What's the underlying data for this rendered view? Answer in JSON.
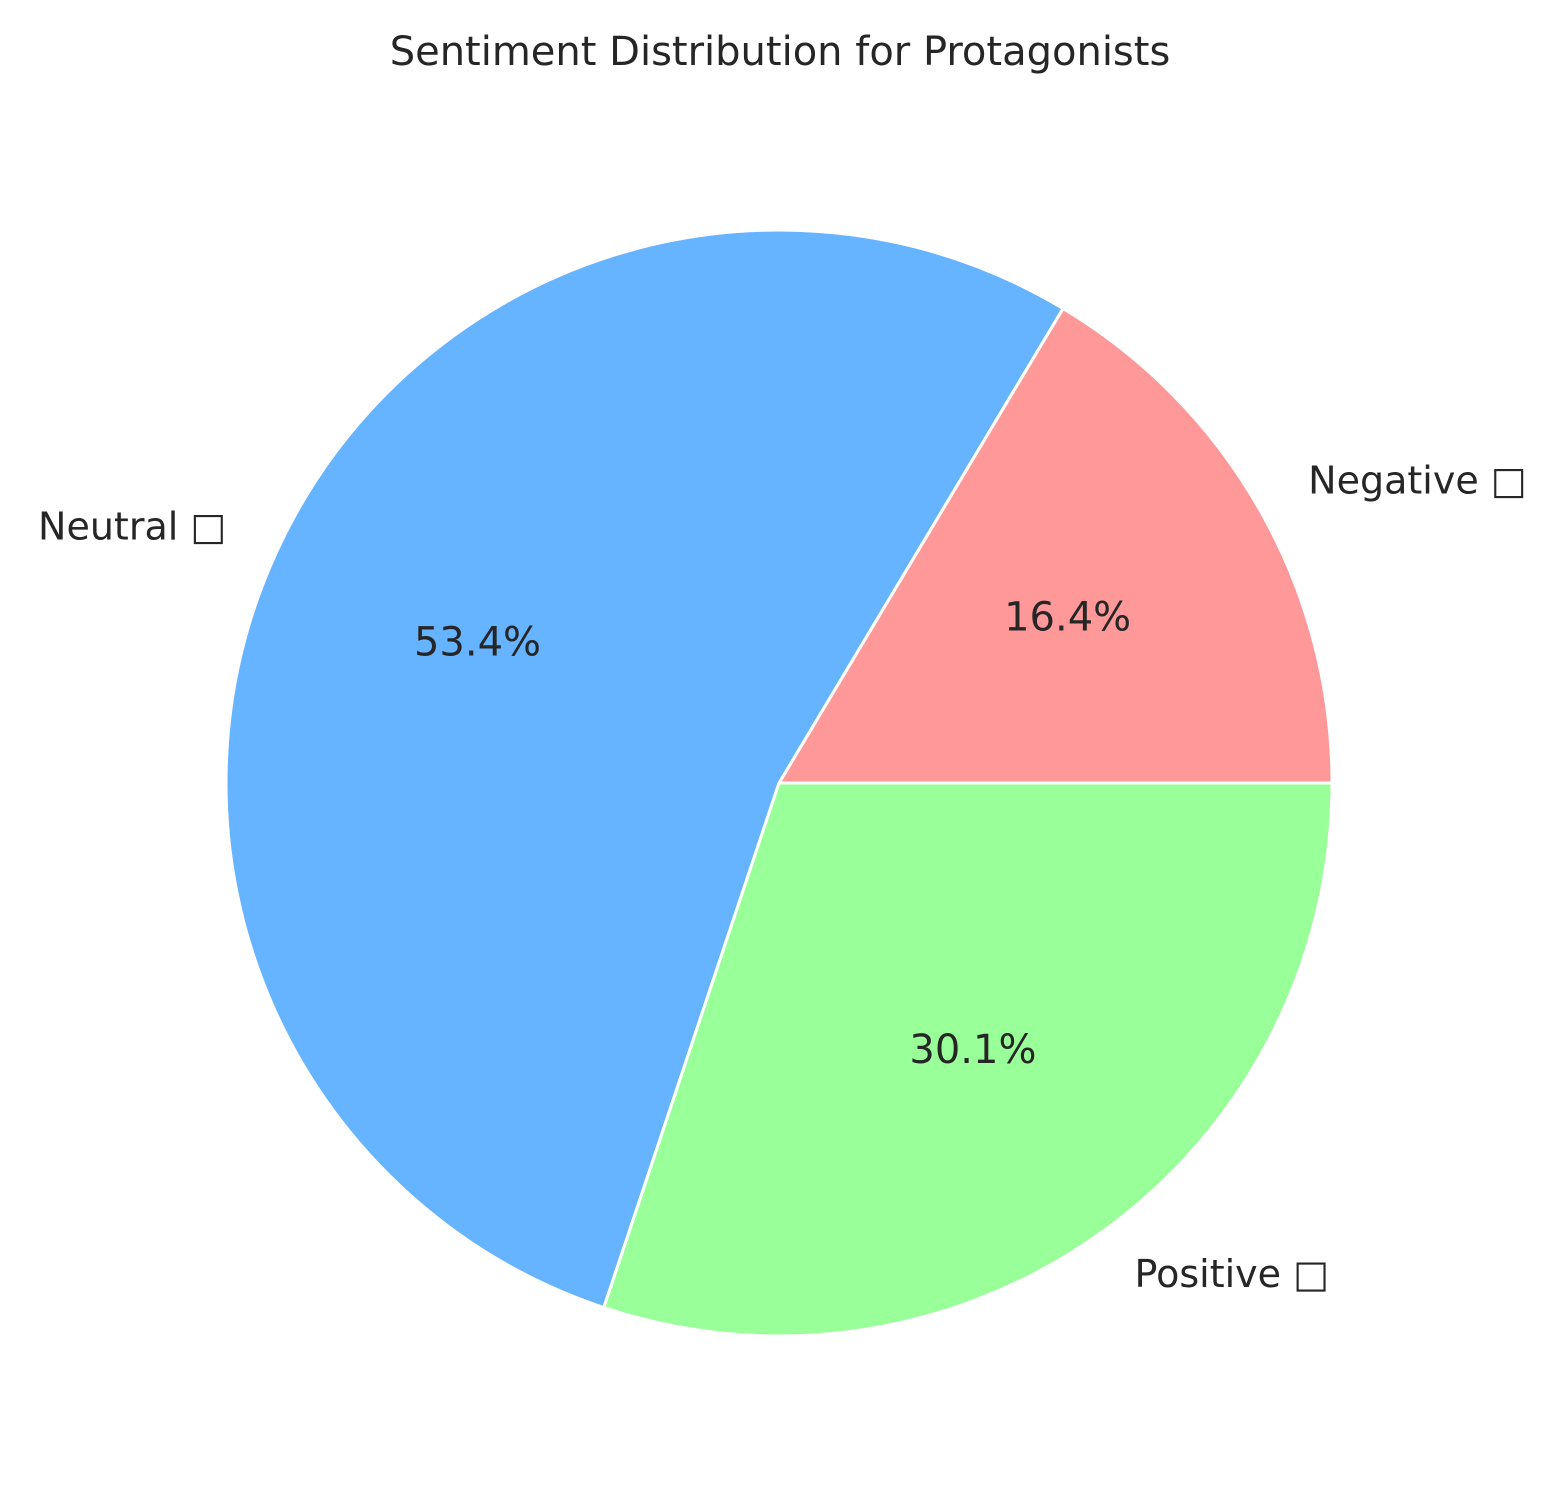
{
  "chart_data": {
    "type": "pie",
    "title": "Sentiment Distribution for Protagonists",
    "slices": [
      {
        "label": "Negative □",
        "value": 16.4,
        "pct_label": "16.4%",
        "color": "#ff9999"
      },
      {
        "label": "Neutral □",
        "value": 53.4,
        "pct_label": "53.4%",
        "color": "#66b3ff"
      },
      {
        "label": "Positive □",
        "value": 30.1,
        "pct_label": "30.1%",
        "color": "#99ff99"
      }
    ],
    "start_angle_deg": 0,
    "direction": "counterclockwise",
    "edge_color": "#ffffff"
  }
}
